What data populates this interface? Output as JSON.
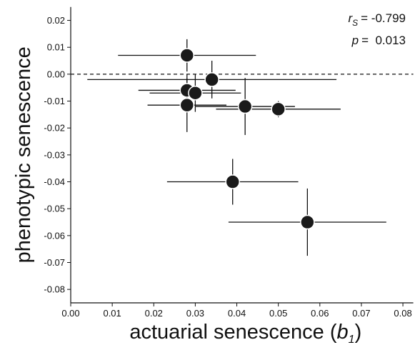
{
  "chart_data": {
    "type": "scatter",
    "xlabel": [
      "actuarial senescence (",
      "b",
      "1",
      ")"
    ],
    "ylabel": "phenotypic senescence",
    "annotations": [
      {
        "symbol": "r",
        "subscript": "S",
        "text": "= -0.799"
      },
      {
        "symbol": "p",
        "text": "=  0.013"
      }
    ],
    "hline": 0,
    "xlim": [
      0,
      0.0825
    ],
    "ylim": [
      -0.085,
      0.025
    ],
    "xticks": [
      {
        "value": 0,
        "label": "0.00"
      },
      0.01,
      0.02,
      0.03,
      0.04,
      0.05,
      0.06,
      0.07,
      0.08
    ],
    "yticks": [
      0.02,
      0.01,
      {
        "value": 0,
        "label": "0.00"
      },
      -0.01,
      -0.02,
      -0.03,
      -0.04,
      -0.05,
      -0.06,
      -0.07,
      -0.08
    ],
    "color": "#1a1a1a",
    "x": [
      0.028,
      0.034,
      0.028,
      0.03,
      0.028,
      0.042,
      0.05,
      0.039,
      0.057
    ],
    "values": [
      0.007,
      -0.002,
      -0.006,
      -0.007,
      -0.0115,
      -0.012,
      -0.013,
      -0.04,
      -0.055
    ],
    "xerr": [
      0.0166,
      0.03,
      0.0117,
      0.011,
      0.0095,
      0.012,
      0.015,
      0.0158,
      0.019
    ],
    "yerr": [
      0.006,
      0.007,
      0.006,
      0.007,
      0.01,
      0.0106,
      0.003,
      0.0085,
      0.0125
    ]
  }
}
